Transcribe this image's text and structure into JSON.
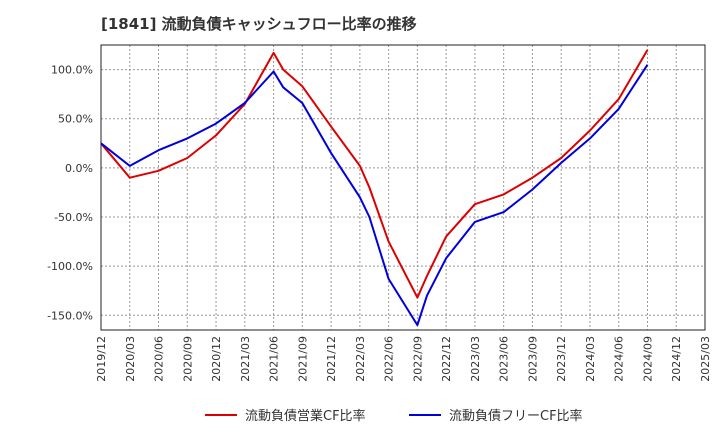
{
  "title": "[1841]  流動負債キャッシュフロー比率の推移",
  "chart_data": {
    "type": "line",
    "ylim": [
      -165,
      125
    ],
    "yticks": [
      {
        "v": 100,
        "label": "100.0%"
      },
      {
        "v": 50,
        "label": "50.0%"
      },
      {
        "v": 0,
        "label": "0.0%"
      },
      {
        "v": -50,
        "label": "-50.0%"
      },
      {
        "v": -100,
        "label": "-100.0%"
      },
      {
        "v": -150,
        "label": "-150.0%"
      }
    ],
    "xticks": [
      "2019/12",
      "2020/03",
      "2020/06",
      "2020/09",
      "2020/12",
      "2021/03",
      "2021/06",
      "2021/09",
      "2021/12",
      "2022/03",
      "2022/06",
      "2022/09",
      "2022/12",
      "2023/03",
      "2023/06",
      "2023/09",
      "2023/12",
      "2024/03",
      "2024/06",
      "2024/09",
      "2024/12",
      "2025/03"
    ],
    "grid": true,
    "legend_position": "bottom",
    "series": [
      {
        "name": "流動負債営業CF比率",
        "color": "#dd0000",
        "points": [
          [
            "2019/12",
            25
          ],
          [
            "2020/03",
            -10
          ],
          [
            "2020/06",
            -3
          ],
          [
            "2020/09",
            10
          ],
          [
            "2020/12",
            33
          ],
          [
            "2021/03",
            65
          ],
          [
            "2021/06",
            117
          ],
          [
            "2021/07",
            100
          ],
          [
            "2021/09",
            83
          ],
          [
            "2021/12",
            42
          ],
          [
            "2022/03",
            2
          ],
          [
            "2022/04",
            -20
          ],
          [
            "2022/06",
            -75
          ],
          [
            "2022/09",
            -132
          ],
          [
            "2022/10",
            -110
          ],
          [
            "2022/12",
            -70
          ],
          [
            "2023/03",
            -37
          ],
          [
            "2023/06",
            -27
          ],
          [
            "2023/09",
            -10
          ],
          [
            "2023/12",
            10
          ],
          [
            "2024/03",
            38
          ],
          [
            "2024/06",
            70
          ],
          [
            "2024/09",
            120
          ]
        ]
      },
      {
        "name": "流動負債フリーCF比率",
        "color": "#0000dd",
        "points": [
          [
            "2019/12",
            25
          ],
          [
            "2020/03",
            2
          ],
          [
            "2020/06",
            18
          ],
          [
            "2020/09",
            30
          ],
          [
            "2020/12",
            45
          ],
          [
            "2021/03",
            66
          ],
          [
            "2021/06",
            98
          ],
          [
            "2021/07",
            82
          ],
          [
            "2021/09",
            66
          ],
          [
            "2021/12",
            15
          ],
          [
            "2022/03",
            -30
          ],
          [
            "2022/04",
            -50
          ],
          [
            "2022/06",
            -113
          ],
          [
            "2022/09",
            -160
          ],
          [
            "2022/10",
            -130
          ],
          [
            "2022/12",
            -92
          ],
          [
            "2023/03",
            -55
          ],
          [
            "2023/06",
            -45
          ],
          [
            "2023/09",
            -22
          ],
          [
            "2023/12",
            5
          ],
          [
            "2024/03",
            30
          ],
          [
            "2024/06",
            60
          ],
          [
            "2024/09",
            105
          ]
        ]
      }
    ]
  }
}
